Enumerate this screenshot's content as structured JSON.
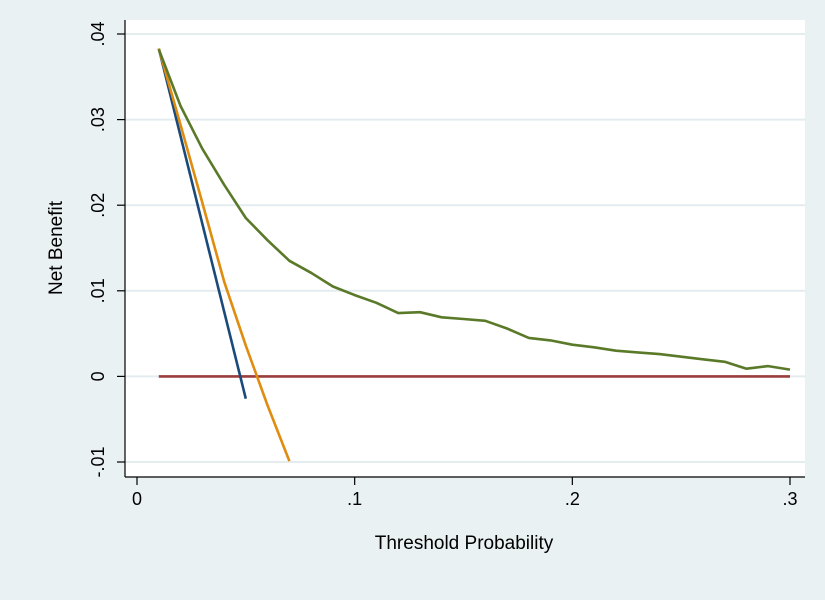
{
  "chart_data": {
    "type": "line",
    "title": "",
    "xlabel": "Threshold Probability",
    "ylabel": "Net Benefit",
    "xlim": [
      0,
      0.3
    ],
    "ylim": [
      -0.01,
      0.04
    ],
    "x_ticks": [
      {
        "value": 0,
        "label": "0"
      },
      {
        "value": 0.1,
        "label": ".1"
      },
      {
        "value": 0.2,
        "label": ".2"
      },
      {
        "value": 0.3,
        "label": ".3"
      }
    ],
    "y_ticks": [
      {
        "value": -0.01,
        "label": "-.01"
      },
      {
        "value": 0,
        "label": "0"
      },
      {
        "value": 0.01,
        "label": ".01"
      },
      {
        "value": 0.02,
        "label": ".02"
      },
      {
        "value": 0.03,
        "label": ".03"
      },
      {
        "value": 0.04,
        "label": ".04"
      }
    ],
    "grid": true,
    "legend": "none",
    "series": [
      {
        "color": "#9c3d3d",
        "x": [
          0.01,
          0.3
        ],
        "y": [
          0,
          0
        ]
      },
      {
        "color": "#1a4a7a",
        "x": [
          0.01,
          0.05
        ],
        "y": [
          0.0383,
          -0.0026
        ]
      },
      {
        "color": "#e08c0f",
        "x": [
          0.01,
          0.02,
          0.03,
          0.04,
          0.05,
          0.06,
          0.07
        ],
        "y": [
          0.0383,
          0.0294,
          0.0203,
          0.0111,
          0.0036,
          -0.0034,
          -0.0099
        ]
      },
      {
        "color": "#5a7a2a",
        "x": [
          0.01,
          0.02,
          0.03,
          0.04,
          0.05,
          0.06,
          0.07,
          0.08,
          0.09,
          0.1,
          0.11,
          0.12,
          0.13,
          0.14,
          0.15,
          0.16,
          0.17,
          0.18,
          0.19,
          0.2,
          0.21,
          0.22,
          0.23,
          0.24,
          0.25,
          0.26,
          0.27,
          0.28,
          0.29,
          0.3
        ],
        "y": [
          0.0382,
          0.0316,
          0.0266,
          0.0224,
          0.0185,
          0.0159,
          0.0135,
          0.0121,
          0.0105,
          0.0095,
          0.0086,
          0.0074,
          0.0075,
          0.0069,
          0.0067,
          0.0065,
          0.0056,
          0.0045,
          0.0042,
          0.0037,
          0.0034,
          0.003,
          0.0028,
          0.0026,
          0.0023,
          0.002,
          0.0017,
          0.0009,
          0.0012,
          0.0008
        ]
      }
    ]
  }
}
